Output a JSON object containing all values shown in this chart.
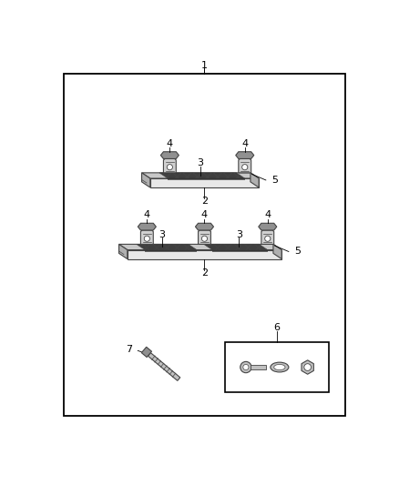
{
  "bg_color": "#ffffff",
  "border_color": "#000000",
  "line_color": "#444444",
  "bar_face_top": "#c8c8c8",
  "bar_face_front": "#e8e8e8",
  "bar_face_side": "#b0b0b0",
  "hatch_dark": "#303030",
  "bracket_fill": "#d0d0d0",
  "bracket_dark": "#909090",
  "hw_fill": "#c0c0c0",
  "font_size": 8,
  "lw_main": 0.8,
  "lw_border": 1.3
}
